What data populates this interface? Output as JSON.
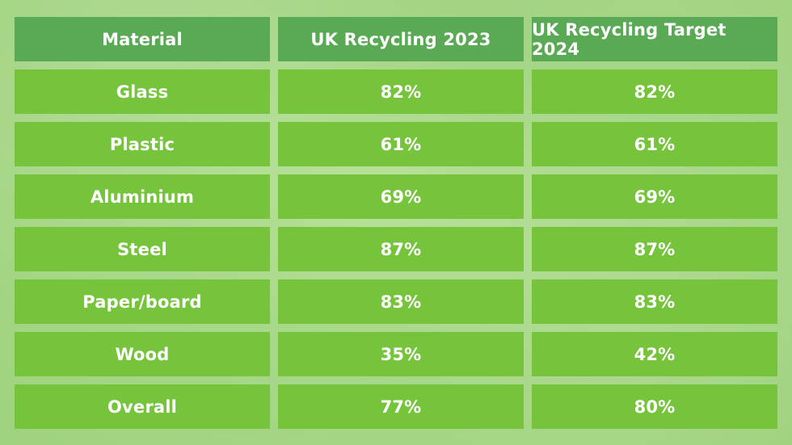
{
  "chart_data": {
    "type": "table",
    "columns": [
      "Material",
      "UK Recycling 2023",
      "UK Recycling Target 2024"
    ],
    "rows": [
      [
        "Glass",
        "82%",
        "82%"
      ],
      [
        "Plastic",
        "61%",
        "61%"
      ],
      [
        "Aluminium",
        "69%",
        "69%"
      ],
      [
        "Steel",
        "87%",
        "87%"
      ],
      [
        "Paper/board",
        "83%",
        "83%"
      ],
      [
        "Wood",
        "35%",
        "42%"
      ],
      [
        "Overall",
        "77%",
        "80%"
      ]
    ]
  },
  "colors": {
    "header_bg": "#5aaa55",
    "cell_bg": "#76c43c",
    "page_bg": "#a8d88a",
    "text": "#ffffff"
  }
}
